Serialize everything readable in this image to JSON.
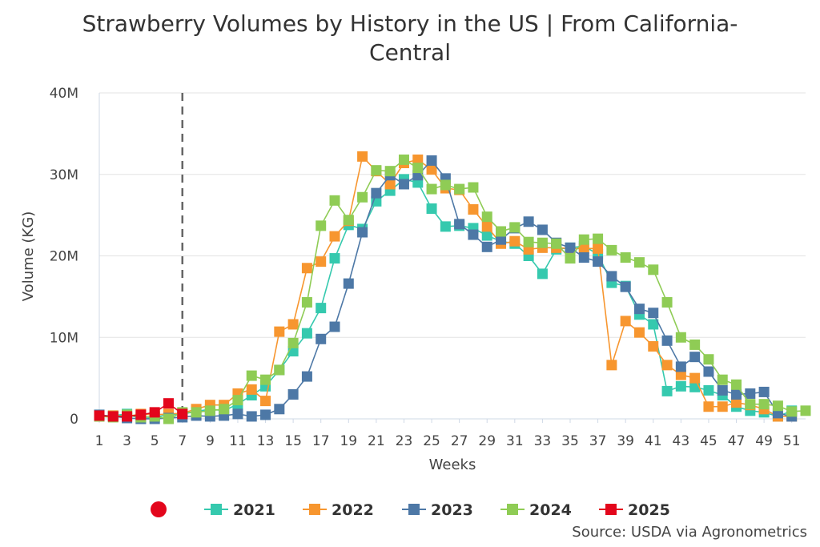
{
  "chart_data": {
    "type": "line",
    "title_lines": [
      "Strawberry Volumes by History in the US | From California-",
      "Central"
    ],
    "xlabel": "Weeks",
    "ylabel": "Volume (KG)",
    "x_ticks": [
      "1",
      "3",
      "5",
      "7",
      "9",
      "11",
      "13",
      "15",
      "17",
      "19",
      "21",
      "23",
      "25",
      "27",
      "29",
      "31",
      "33",
      "35",
      "37",
      "39",
      "41",
      "43",
      "45",
      "47",
      "49",
      "51"
    ],
    "y_ticks": [
      "0",
      "10M",
      "20M",
      "30M",
      "40M"
    ],
    "xlim": [
      1,
      52
    ],
    "ylim": [
      0,
      40000000
    ],
    "current_week_marker": 7,
    "legend_position": "bottom",
    "series": [
      {
        "name": "2021",
        "color": "#35c9ae",
        "values": [
          300000,
          400000,
          600000,
          0,
          200000,
          500000,
          600000,
          900000,
          1200000,
          1000000,
          1800000,
          2900000,
          4000000,
          6000000,
          8300000,
          10500000,
          13600000,
          19700000,
          23800000,
          23300000,
          26700000,
          28000000,
          29400000,
          29000000,
          25800000,
          23600000,
          23700000,
          23400000,
          22500000,
          21800000,
          21500000,
          20000000,
          17800000,
          20800000,
          21000000,
          21200000,
          20200000,
          16700000,
          16300000,
          12800000,
          11600000,
          3400000,
          4000000,
          3900000,
          3500000,
          2900000,
          1500000,
          1000000,
          800000,
          300000,
          1000000
        ]
      },
      {
        "name": "2022",
        "color": "#f7962f",
        "values": [
          300000,
          400000,
          300000,
          600000,
          500000,
          600000,
          700000,
          1200000,
          1700000,
          1700000,
          3100000,
          3600000,
          2200000,
          10700000,
          11600000,
          18500000,
          19300000,
          22400000,
          24300000,
          32200000,
          30400000,
          28800000,
          31400000,
          31800000,
          30600000,
          28300000,
          28100000,
          25700000,
          23600000,
          21500000,
          21800000,
          20800000,
          21000000,
          21000000,
          20900000,
          20900000,
          20900000,
          6600000,
          12000000,
          10600000,
          8900000,
          6600000,
          5400000,
          5000000,
          1500000,
          1500000,
          2000000,
          1700000,
          1200000,
          300000,
          300000
        ]
      },
      {
        "name": "2023",
        "color": "#4d78a6",
        "values": [
          500000,
          300000,
          100000,
          0,
          0,
          100000,
          200000,
          400000,
          300000,
          400000,
          600000,
          300000,
          500000,
          1200000,
          3000000,
          5200000,
          9800000,
          11300000,
          16600000,
          22900000,
          27700000,
          29900000,
          28800000,
          29900000,
          31700000,
          29500000,
          23900000,
          22600000,
          21100000,
          22000000,
          23400000,
          24200000,
          23200000,
          21600000,
          21000000,
          19800000,
          19300000,
          17500000,
          16200000,
          13500000,
          13000000,
          9600000,
          6400000,
          7600000,
          5800000,
          3500000,
          3000000,
          3100000,
          3300000,
          700000,
          300000
        ]
      },
      {
        "name": "2024",
        "color": "#8fcc55",
        "values": [
          300000,
          200000,
          500000,
          200000,
          300000,
          0,
          800000,
          800000,
          1000000,
          1200000,
          2300000,
          5300000,
          4800000,
          6000000,
          9300000,
          14300000,
          23700000,
          26800000,
          24400000,
          27200000,
          30500000,
          30400000,
          31800000,
          30800000,
          28200000,
          28700000,
          28200000,
          28400000,
          24800000,
          23000000,
          23500000,
          21700000,
          21600000,
          21500000,
          19700000,
          22000000,
          22100000,
          20700000,
          19800000,
          19200000,
          18300000,
          14300000,
          10000000,
          9100000,
          7300000,
          4800000,
          4200000,
          1800000,
          1800000,
          1600000,
          900000,
          1000000
        ]
      },
      {
        "name": "2025",
        "color": "#e3061c",
        "values": [
          400000,
          300000,
          300000,
          500000,
          800000,
          1900000,
          600000
        ]
      }
    ]
  },
  "legend": {
    "entries": [
      "2021",
      "2022",
      "2023",
      "2024",
      "2025"
    ],
    "status_dot_color": "#e3061c"
  },
  "source": "Source: USDA via Agronometrics"
}
